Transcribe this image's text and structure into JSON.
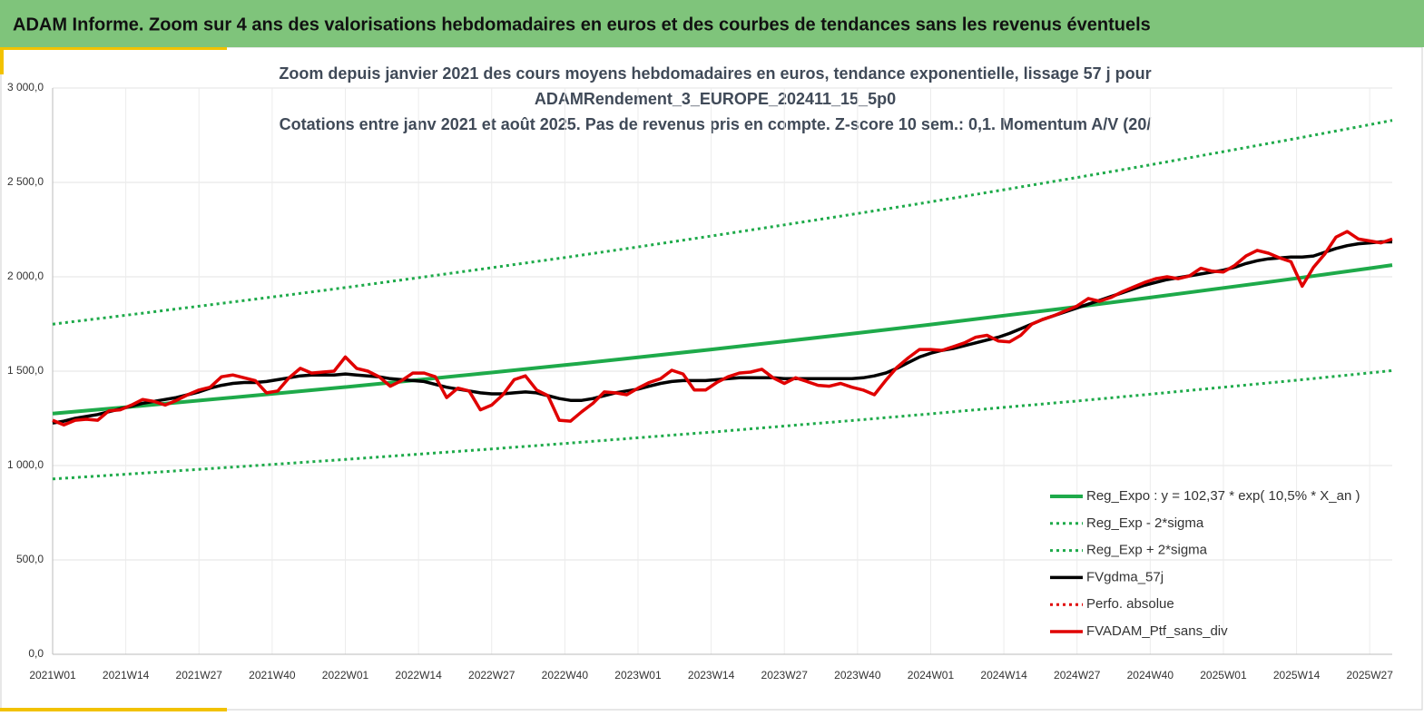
{
  "header": {
    "title": "ADAM Informe. Zoom sur 4 ans des valorisations hebdomadaires en euros et des courbes de tendances sans les revenus éventuels"
  },
  "chart_data": {
    "type": "line",
    "title_lines": [
      "Zoom depuis janvier 2021 des cours moyens hebdomadaires  en euros, tendance exponentielle, lissage 57 j pour",
      "ADAMRendement_3_EUROPE_202411_15_5p0",
      "Cotations entre janv 2021 et août 2025. Pas de revenus pris en compte. Z-score 10 sem.: 0,1. Momentum A/V (20/"
    ],
    "xlim": [
      0,
      238
    ],
    "xticks": [
      {
        "value": 0,
        "label": "2021W01"
      },
      {
        "value": 13,
        "label": "2021W14"
      },
      {
        "value": 26,
        "label": "2021W27"
      },
      {
        "value": 39,
        "label": "2021W40"
      },
      {
        "value": 52,
        "label": "2022W01"
      },
      {
        "value": 65,
        "label": "2022W14"
      },
      {
        "value": 78,
        "label": "2022W27"
      },
      {
        "value": 91,
        "label": "2022W40"
      },
      {
        "value": 104,
        "label": "2023W01"
      },
      {
        "value": 117,
        "label": "2023W14"
      },
      {
        "value": 130,
        "label": "2023W27"
      },
      {
        "value": 143,
        "label": "2023W40"
      },
      {
        "value": 156,
        "label": "2024W01"
      },
      {
        "value": 169,
        "label": "2024W14"
      },
      {
        "value": 182,
        "label": "2024W27"
      },
      {
        "value": 195,
        "label": "2024W40"
      },
      {
        "value": 208,
        "label": "2025W01"
      },
      {
        "value": 221,
        "label": "2025W14"
      },
      {
        "value": 234,
        "label": "2025W27"
      }
    ],
    "ylim": [
      0,
      3000
    ],
    "yticks": [
      {
        "value": 0,
        "label": "0,0"
      },
      {
        "value": 500,
        "label": "500,0"
      },
      {
        "value": 1000,
        "label": "1 000,0"
      },
      {
        "value": 1500,
        "label": "1 500,0"
      },
      {
        "value": 2000,
        "label": "2 000,0"
      },
      {
        "value": 2500,
        "label": "2 500,0"
      },
      {
        "value": 3000,
        "label": "3 000,0"
      }
    ],
    "grid": true,
    "x": [
      0,
      2,
      4,
      6,
      8,
      10,
      12,
      14,
      16,
      18,
      20,
      22,
      24,
      26,
      28,
      30,
      32,
      34,
      36,
      38,
      40,
      42,
      44,
      46,
      48,
      50,
      52,
      54,
      56,
      58,
      60,
      62,
      64,
      66,
      68,
      70,
      72,
      74,
      76,
      78,
      80,
      82,
      84,
      86,
      88,
      90,
      92,
      94,
      96,
      98,
      100,
      102,
      104,
      106,
      108,
      110,
      112,
      114,
      116,
      118,
      120,
      122,
      124,
      126,
      128,
      130,
      132,
      134,
      136,
      138,
      140,
      142,
      144,
      146,
      148,
      150,
      152,
      154,
      156,
      158,
      160,
      162,
      164,
      166,
      168,
      170,
      172,
      174,
      176,
      178,
      180,
      182,
      184,
      186,
      188,
      190,
      192,
      194,
      196,
      198,
      200,
      202,
      204,
      206,
      208,
      210,
      212,
      214,
      216,
      218,
      220,
      222,
      224,
      226,
      228,
      230,
      232,
      234,
      236,
      238
    ],
    "legend": "bottom-right",
    "series": [
      {
        "name": "Reg_Expo : y = 102,37 * exp( 10,5% *  X_an )",
        "color": "#1eaa4a",
        "style": "solid",
        "width": 4,
        "x": [
          0,
          13,
          26,
          39,
          52,
          65,
          78,
          91,
          104,
          117,
          130,
          143,
          156,
          169,
          182,
          195,
          208,
          221,
          234,
          238
        ],
        "values": [
          1275,
          1309,
          1344,
          1380,
          1416,
          1454,
          1493,
          1532,
          1573,
          1615,
          1658,
          1702,
          1747,
          1794,
          1841,
          1890,
          1941,
          1992,
          2045,
          2062
        ]
      },
      {
        "name": "Reg_Exp - 2*sigma",
        "color": "#1eaa4a",
        "style": "dotted",
        "width": 3,
        "x": [
          0,
          13,
          26,
          39,
          52,
          65,
          78,
          91,
          104,
          117,
          130,
          143,
          156,
          169,
          182,
          195,
          208,
          221,
          234,
          238
        ],
        "values": [
          929,
          954,
          980,
          1006,
          1032,
          1060,
          1088,
          1117,
          1147,
          1177,
          1209,
          1241,
          1274,
          1308,
          1342,
          1378,
          1415,
          1452,
          1491,
          1503
        ]
      },
      {
        "name": "Reg_Exp + 2*sigma",
        "color": "#1eaa4a",
        "style": "dotted",
        "width": 3,
        "x": [
          0,
          13,
          26,
          39,
          52,
          65,
          78,
          91,
          104,
          117,
          130,
          143,
          156,
          169,
          182,
          195,
          208,
          221,
          234,
          238
        ],
        "values": [
          1749,
          1796,
          1844,
          1893,
          1943,
          1995,
          2048,
          2102,
          2158,
          2216,
          2275,
          2335,
          2397,
          2461,
          2526,
          2593,
          2663,
          2733,
          2806,
          2829
        ]
      },
      {
        "name": "FVgdma_57j",
        "color": "#000000",
        "style": "solid",
        "width": 3.5,
        "values": [
          1225,
          1235,
          1250,
          1260,
          1270,
          1285,
          1300,
          1315,
          1330,
          1340,
          1350,
          1360,
          1375,
          1390,
          1410,
          1425,
          1435,
          1440,
          1440,
          1445,
          1455,
          1465,
          1475,
          1480,
          1480,
          1480,
          1485,
          1480,
          1475,
          1470,
          1460,
          1455,
          1450,
          1445,
          1430,
          1415,
          1405,
          1395,
          1385,
          1380,
          1380,
          1385,
          1390,
          1385,
          1370,
          1355,
          1345,
          1345,
          1355,
          1370,
          1385,
          1395,
          1405,
          1420,
          1435,
          1445,
          1450,
          1450,
          1450,
          1455,
          1460,
          1465,
          1465,
          1465,
          1465,
          1460,
          1460,
          1460,
          1460,
          1460,
          1460,
          1460,
          1465,
          1475,
          1490,
          1515,
          1545,
          1575,
          1595,
          1610,
          1620,
          1635,
          1650,
          1665,
          1680,
          1700,
          1725,
          1750,
          1775,
          1795,
          1815,
          1835,
          1855,
          1875,
          1895,
          1915,
          1935,
          1955,
          1970,
          1985,
          1995,
          2005,
          2015,
          2025,
          2035,
          2050,
          2070,
          2085,
          2095,
          2100,
          2105,
          2105,
          2110,
          2130,
          2150,
          2165,
          2175,
          2180,
          2185,
          2185
        ]
      },
      {
        "name": "Perfo. absolue",
        "color": "#e00000",
        "style": "dotted",
        "width": 3,
        "x": [],
        "values": []
      },
      {
        "name": "FVADAM_Ptf_sans_div",
        "color": "#e00000",
        "style": "solid",
        "width": 3.5,
        "values": [
          1240,
          1215,
          1240,
          1245,
          1240,
          1290,
          1295,
          1320,
          1350,
          1340,
          1320,
          1345,
          1375,
          1400,
          1415,
          1470,
          1480,
          1465,
          1450,
          1385,
          1395,
          1465,
          1515,
          1490,
          1495,
          1500,
          1575,
          1515,
          1500,
          1470,
          1420,
          1450,
          1490,
          1490,
          1470,
          1360,
          1410,
          1395,
          1295,
          1320,
          1375,
          1455,
          1475,
          1400,
          1370,
          1240,
          1235,
          1285,
          1330,
          1390,
          1385,
          1375,
          1410,
          1440,
          1460,
          1505,
          1485,
          1400,
          1400,
          1440,
          1470,
          1490,
          1495,
          1510,
          1465,
          1435,
          1465,
          1445,
          1425,
          1420,
          1435,
          1415,
          1400,
          1375,
          1450,
          1520,
          1570,
          1615,
          1615,
          1610,
          1630,
          1650,
          1680,
          1690,
          1660,
          1655,
          1690,
          1750,
          1775,
          1795,
          1820,
          1845,
          1885,
          1870,
          1890,
          1920,
          1945,
          1970,
          1990,
          2000,
          1990,
          2005,
          2045,
          2030,
          2025,
          2060,
          2110,
          2140,
          2125,
          2100,
          2080,
          1950,
          2050,
          2120,
          2210,
          2240,
          2200,
          2190,
          2180,
          2200
        ]
      }
    ]
  }
}
